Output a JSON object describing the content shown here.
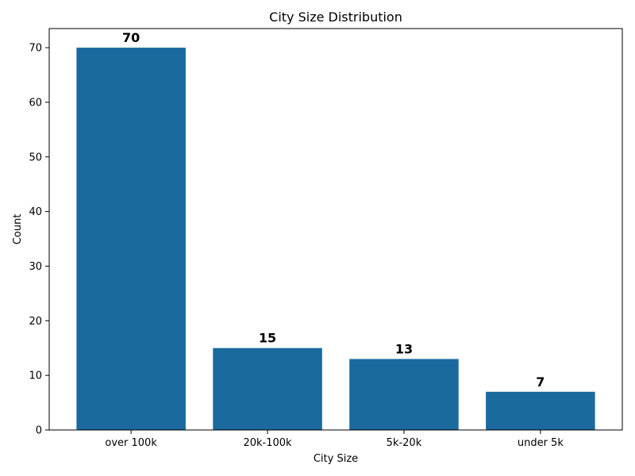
{
  "chart_data": {
    "type": "bar",
    "title": "City Size Distribution",
    "xlabel": "City Size",
    "ylabel": "Count",
    "categories": [
      "over 100k",
      "20k-100k",
      "5k-20k",
      "under 5k"
    ],
    "values": [
      70,
      15,
      13,
      7
    ],
    "data_labels": [
      "70",
      "15",
      "13",
      "7"
    ],
    "ylim": [
      0,
      73.5
    ],
    "yticks": [
      0,
      10,
      20,
      30,
      40,
      50,
      60,
      70
    ],
    "ytick_labels": [
      "0",
      "10",
      "20",
      "30",
      "40",
      "50",
      "60",
      "70"
    ],
    "bar_color": "#1a6a9e",
    "grid": false,
    "legend": "none"
  }
}
